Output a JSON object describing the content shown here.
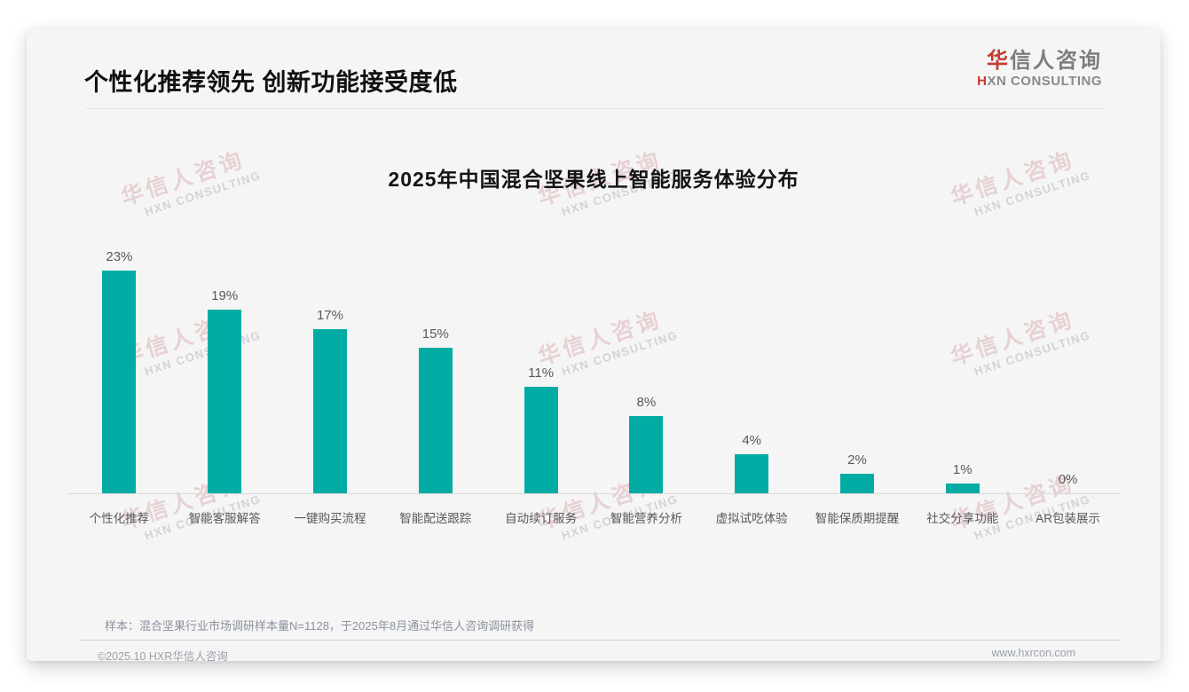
{
  "header": {
    "title": "个性化推荐领先 创新功能接受度低",
    "logo": {
      "cn_accent": "华",
      "cn_rest": "信人咨询",
      "en_accent": "H",
      "en_rest": "XN CONSULTING"
    }
  },
  "watermark": {
    "cn": "华信人咨询",
    "en": "HXN CONSULTING"
  },
  "chart_data": {
    "type": "bar",
    "title": "2025年中国混合坚果线上智能服务体验分布",
    "categories": [
      "个性化推荐",
      "智能客服解答",
      "一键购买流程",
      "智能配送跟踪",
      "自动续订服务",
      "智能营养分析",
      "虚拟试吃体验",
      "智能保质期提醒",
      "社交分享功能",
      "AR包装展示"
    ],
    "values": [
      23,
      19,
      17,
      15,
      11,
      8,
      4,
      2,
      1,
      0
    ],
    "value_labels": [
      "23%",
      "19%",
      "17%",
      "15%",
      "11%",
      "8%",
      "4%",
      "2%",
      "1%",
      "0%"
    ],
    "unit": "%",
    "bar_color": "#00aca3",
    "xlabel": "",
    "ylabel": "",
    "ylim": [
      0,
      25
    ],
    "grid": false,
    "legend": "none"
  },
  "footer": {
    "note": "样本：混合坚果行业市场调研样本量N=1128，于2025年8月通过华信人咨询调研获得",
    "copyright": "©2025.10 HXR华信人咨询",
    "website": "www.hxrcon.com"
  },
  "colors": {
    "bar": "#00aca3",
    "accent_red": "#c53a2f"
  }
}
